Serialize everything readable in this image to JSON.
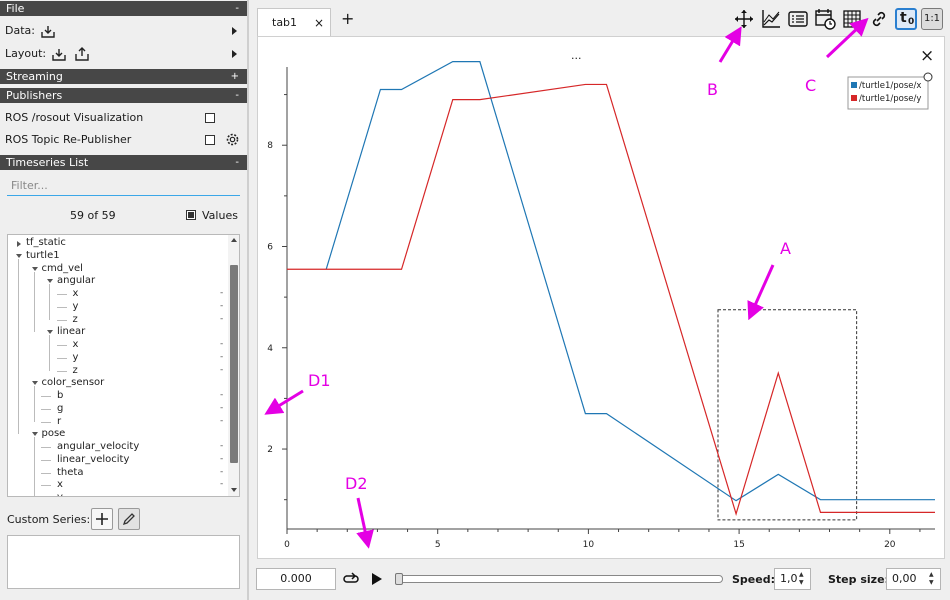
{
  "left": {
    "file_header": "File",
    "file_sign": "-",
    "data_label": "Data:",
    "layout_label": "Layout:",
    "streaming_header": "Streaming",
    "streaming_sign": "+",
    "publishers_header": "Publishers",
    "publishers_sign": "-",
    "publishers": [
      {
        "label": "ROS /rosout Visualization",
        "checked": false
      },
      {
        "label": "ROS Topic Re-Publisher",
        "checked": false
      }
    ],
    "timeseries_header": "Timeseries List",
    "timeseries_sign": "-",
    "filter_placeholder": "Filter...",
    "count": "59 of 59",
    "values_label": "Values",
    "tree": [
      {
        "label": "tf_static",
        "depth": 0,
        "expanded": false,
        "leaf": false
      },
      {
        "label": "turtle1",
        "depth": 0,
        "expanded": true,
        "leaf": false
      },
      {
        "label": "cmd_vel",
        "depth": 1,
        "expanded": true,
        "leaf": false
      },
      {
        "label": "angular",
        "depth": 2,
        "expanded": true,
        "leaf": false
      },
      {
        "label": "x",
        "depth": 3,
        "leaf": true,
        "value": "-"
      },
      {
        "label": "y",
        "depth": 3,
        "leaf": true,
        "value": "-"
      },
      {
        "label": "z",
        "depth": 3,
        "leaf": true,
        "value": "-"
      },
      {
        "label": "linear",
        "depth": 2,
        "expanded": true,
        "leaf": false
      },
      {
        "label": "x",
        "depth": 3,
        "leaf": true,
        "value": "-"
      },
      {
        "label": "y",
        "depth": 3,
        "leaf": true,
        "value": "-"
      },
      {
        "label": "z",
        "depth": 3,
        "leaf": true,
        "value": "-"
      },
      {
        "label": "color_sensor",
        "depth": 1,
        "expanded": true,
        "leaf": false
      },
      {
        "label": "b",
        "depth": 2,
        "leaf": true,
        "value": "-"
      },
      {
        "label": "g",
        "depth": 2,
        "leaf": true,
        "value": "-"
      },
      {
        "label": "r",
        "depth": 2,
        "leaf": true,
        "value": "-"
      },
      {
        "label": "pose",
        "depth": 1,
        "expanded": true,
        "leaf": false
      },
      {
        "label": "angular_velocity",
        "depth": 2,
        "leaf": true,
        "value": "-"
      },
      {
        "label": "linear_velocity",
        "depth": 2,
        "leaf": true,
        "value": "-"
      },
      {
        "label": "theta",
        "depth": 2,
        "leaf": true,
        "value": "-"
      },
      {
        "label": "x",
        "depth": 2,
        "leaf": true,
        "value": "-"
      },
      {
        "label": "y",
        "depth": 2,
        "leaf": true,
        "value": "-"
      }
    ],
    "custom_series_label": "Custom Series:"
  },
  "right": {
    "tab_label": "tab1",
    "tab_close": "×",
    "tab_add": "+",
    "plot_title": "...",
    "toolbar": [
      "move-icon",
      "ratio-icon",
      "list-icon",
      "calendar-clock-icon",
      "grid-icon",
      "link-icon",
      "t0-icon",
      "1to1-icon"
    ],
    "t0_label": "t",
    "t0_sub": "0",
    "ratio_label": "1:1",
    "close_plot": "×"
  },
  "bottom": {
    "time": "0.000",
    "speed_label": "Speed:",
    "speed_value": "1,0",
    "step_label": "Step size:",
    "step_value": "0,00"
  },
  "annotations": {
    "A": "A",
    "B": "B",
    "C": "C",
    "D1": "D1",
    "D2": "D2"
  },
  "chart_data": {
    "type": "line",
    "xlim": [
      0,
      21.5
    ],
    "ylim": [
      0.5,
      9.9
    ],
    "x_ticks": [
      0,
      5,
      10,
      15,
      20
    ],
    "y_ticks": [
      2,
      4,
      6,
      8
    ],
    "grid": false,
    "legend_position": "top-right",
    "series": [
      {
        "name": "/turtle1/pose/x",
        "color": "#1f77b4",
        "x": [
          1.3,
          3.1,
          3.8,
          5.5,
          6.4,
          9.9,
          10.6,
          14.9,
          16.3,
          17.7,
          21.5
        ],
        "y": [
          5.55,
          9.1,
          9.1,
          9.65,
          9.65,
          2.7,
          2.7,
          0.98,
          1.5,
          1.0,
          1.0
        ]
      },
      {
        "name": "/turtle1/pose/y",
        "color": "#d62728",
        "x": [
          0,
          3.8,
          5.5,
          6.4,
          9.9,
          10.6,
          14.9,
          16.3,
          17.7,
          21.5
        ],
        "y": [
          5.55,
          5.55,
          8.9,
          8.9,
          9.2,
          9.2,
          0.72,
          3.5,
          0.75,
          0.75
        ]
      }
    ],
    "selection_box": {
      "x": [
        14.3,
        18.9
      ],
      "y": [
        0.6,
        4.75
      ]
    }
  }
}
